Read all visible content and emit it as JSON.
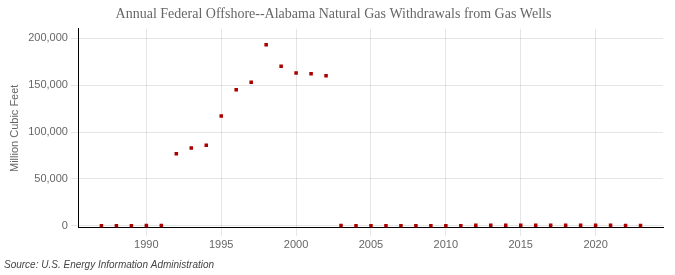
{
  "chart_data": {
    "type": "scatter",
    "title": "Annual Federal Offshore--Alabama Natural Gas Withdrawals from Gas Wells",
    "ylabel": "Million Cubic Feet",
    "source": "Source: U.S. Energy Information Administration",
    "x": [
      1987,
      1988,
      1989,
      1990,
      1991,
      1992,
      1993,
      1994,
      1995,
      1996,
      1997,
      1998,
      1999,
      2000,
      2001,
      2002,
      2003,
      2004,
      2005,
      2006,
      2007,
      2008,
      2009,
      2010,
      2011,
      2012,
      2013,
      2014,
      2015,
      2016,
      2017,
      2018,
      2019,
      2020,
      2021,
      2022,
      2023
    ],
    "values": [
      100,
      100,
      200,
      300,
      400,
      77000,
      83000,
      86000,
      117000,
      145000,
      153000,
      193000,
      170000,
      163000,
      162000,
      160000,
      300,
      200,
      200,
      200,
      200,
      200,
      200,
      200,
      200,
      800,
      800,
      800,
      800,
      800,
      600,
      600,
      600,
      600,
      600,
      500,
      300
    ],
    "color": "#aa0000",
    "marker": "square",
    "xlim": [
      1985.5,
      2024.5
    ],
    "ylim": [
      -2000,
      210000
    ],
    "xticks": [
      1990,
      1995,
      2000,
      2005,
      2010,
      2015,
      2020
    ],
    "yticks": [
      0,
      {
        "value": 50000,
        "label": "50,000"
      },
      {
        "value": 100000,
        "label": "100,000"
      },
      {
        "value": 150000,
        "label": "150,000"
      },
      {
        "value": 200000,
        "label": "200,000"
      }
    ],
    "grid": true
  }
}
